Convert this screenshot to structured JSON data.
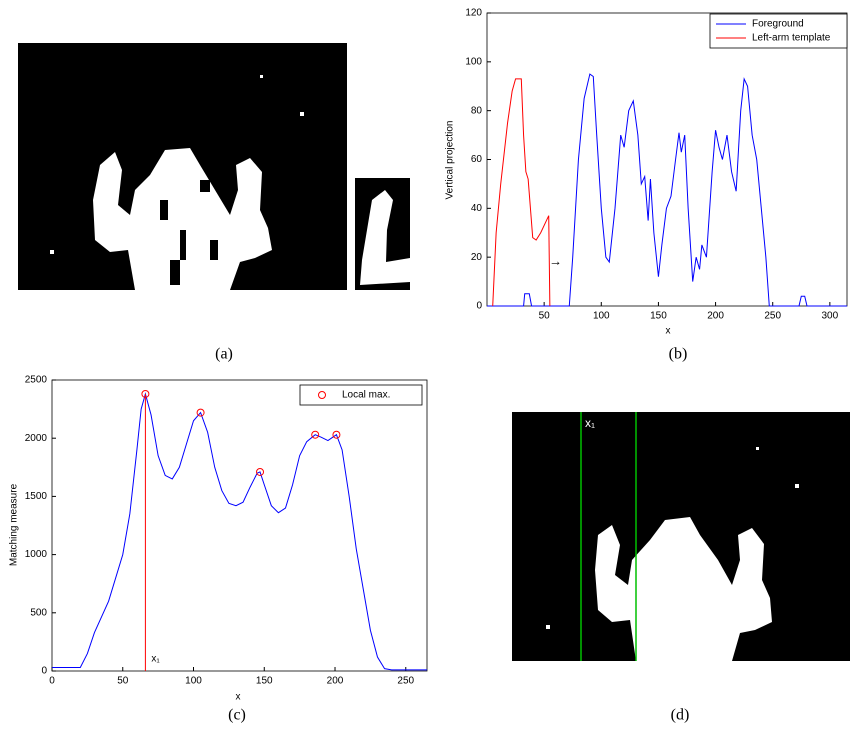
{
  "chart_data": [
    {
      "type": "line",
      "caption": "(b)",
      "xlabel": "x",
      "ylabel": "Vertical projection",
      "xlim": [
        0,
        315
      ],
      "xticks": [
        50,
        100,
        150,
        200,
        250,
        300
      ],
      "ylim": [
        0,
        120
      ],
      "yticks": [
        0,
        20,
        40,
        60,
        80,
        100,
        120
      ],
      "grid": false,
      "legend": "upper right",
      "annotations": [
        "→"
      ],
      "series": [
        {
          "name": "Foreground",
          "color": "#0000ff",
          "x": [
            0,
            32,
            33,
            37,
            39,
            72,
            75,
            80,
            85,
            90,
            93,
            96,
            100,
            104,
            107,
            112,
            117,
            120,
            124,
            128,
            132,
            135,
            138,
            141,
            143,
            146,
            150,
            153,
            157,
            161,
            165,
            168,
            170,
            173,
            176,
            180,
            183,
            186,
            188,
            192,
            197,
            200,
            203,
            206,
            210,
            214,
            218,
            222,
            225,
            228,
            232,
            236,
            240,
            244,
            247,
            273,
            275,
            278,
            280,
            315
          ],
          "values": [
            0,
            0,
            5,
            5,
            0,
            0,
            20,
            60,
            85,
            95,
            94,
            70,
            40,
            20,
            18,
            40,
            70,
            65,
            80,
            84,
            70,
            50,
            53,
            35,
            52,
            30,
            12,
            25,
            40,
            45,
            60,
            71,
            63,
            70,
            40,
            10,
            20,
            15,
            25,
            20,
            55,
            72,
            65,
            60,
            70,
            55,
            47,
            80,
            93,
            90,
            70,
            60,
            40,
            20,
            0,
            0,
            4,
            4,
            0,
            0
          ]
        },
        {
          "name": "Left-arm template",
          "color": "#ff0000",
          "x": [
            5,
            8,
            12,
            18,
            22,
            25,
            30,
            32,
            34,
            36,
            38,
            40,
            43,
            47,
            52,
            54,
            55
          ],
          "values": [
            0,
            30,
            50,
            75,
            88,
            93,
            93,
            70,
            55,
            52,
            40,
            28,
            27,
            30,
            35,
            37,
            0
          ]
        }
      ]
    },
    {
      "type": "line",
      "caption": "(c)",
      "xlabel": "x",
      "ylabel": "Matching measure",
      "xlim": [
        0,
        265
      ],
      "xticks": [
        0,
        50,
        100,
        150,
        200,
        250
      ],
      "ylim": [
        0,
        2500
      ],
      "yticks": [
        0,
        500,
        1000,
        1500,
        2000,
        2500
      ],
      "grid": false,
      "legend": "upper right",
      "annotations": [
        "x₁"
      ],
      "series": [
        {
          "color": "#0000ff",
          "x": [
            0,
            20,
            25,
            30,
            40,
            50,
            55,
            60,
            63,
            66,
            70,
            75,
            80,
            85,
            90,
            95,
            100,
            105,
            110,
            115,
            120,
            125,
            130,
            135,
            140,
            145,
            147,
            150,
            155,
            160,
            165,
            170,
            175,
            180,
            186,
            190,
            195,
            201,
            205,
            210,
            215,
            220,
            225,
            230,
            235,
            240,
            250,
            265
          ],
          "values": [
            30,
            30,
            150,
            330,
            600,
            1000,
            1350,
            1900,
            2250,
            2380,
            2200,
            1850,
            1680,
            1650,
            1750,
            1950,
            2150,
            2220,
            2050,
            1750,
            1550,
            1440,
            1420,
            1450,
            1580,
            1700,
            1710,
            1600,
            1420,
            1360,
            1400,
            1600,
            1850,
            1970,
            2030,
            2010,
            1980,
            2030,
            1900,
            1500,
            1050,
            700,
            350,
            120,
            20,
            10,
            10,
            10
          ]
        },
        {
          "name": "Local max.",
          "color": "#ff0000",
          "marker": "circle",
          "x": [
            66,
            105,
            147,
            186,
            201
          ],
          "values": [
            2380,
            2220,
            1710,
            2030,
            2030
          ]
        }
      ]
    }
  ],
  "image_panels": [
    {
      "caption": "(a)"
    },
    {
      "caption": "(d)",
      "label": "x₁"
    }
  ]
}
